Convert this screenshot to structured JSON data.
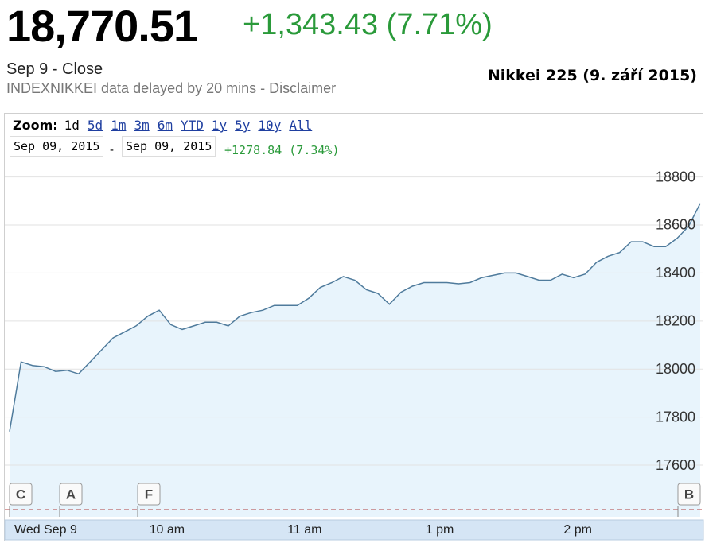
{
  "header": {
    "price": "18,770.51",
    "change": "+1,343.43 (7.71%)",
    "session": "Sep 9 - Close",
    "disclaimer": "INDEXNIKKEI data delayed by 20 mins - Disclaimer",
    "caption": "Nikkei 225 (9. září 2015)"
  },
  "zoom": {
    "label": "Zoom:",
    "options": [
      "1d",
      "5d",
      "1m",
      "3m",
      "6m",
      "YTD",
      "1y",
      "5y",
      "10y",
      "All"
    ],
    "from": "Sep 09, 2015",
    "separator": "-",
    "to": "Sep 09, 2015",
    "range_change": "+1278.84 (7.34%)"
  },
  "chart_data": {
    "type": "line",
    "categories": [
      "Wed Sep 9",
      null,
      null,
      null,
      null,
      null,
      null,
      null,
      null,
      null,
      null,
      null,
      "10 am",
      null,
      null,
      null,
      null,
      null,
      null,
      null,
      null,
      null,
      null,
      null,
      "11 am",
      null,
      null,
      null,
      null,
      null,
      null,
      null,
      null,
      null,
      null,
      null,
      "1 pm",
      null,
      null,
      null,
      null,
      null,
      null,
      null,
      null,
      null,
      null,
      null,
      "2 pm",
      null,
      null,
      null,
      null,
      null,
      null,
      null,
      null,
      null,
      null,
      null,
      null
    ],
    "values": [
      17740,
      18030,
      18015,
      18010,
      17990,
      17995,
      17980,
      18030,
      18080,
      18130,
      18155,
      18180,
      18220,
      18245,
      18185,
      18165,
      18180,
      18195,
      18195,
      18180,
      18220,
      18235,
      18245,
      18265,
      18265,
      18265,
      18295,
      18340,
      18360,
      18385,
      18370,
      18330,
      18315,
      18270,
      18320,
      18345,
      18360,
      18360,
      18360,
      18355,
      18360,
      18380,
      18390,
      18400,
      18400,
      18385,
      18370,
      18370,
      18395,
      18380,
      18395,
      18445,
      18470,
      18485,
      18530,
      18530,
      18510,
      18510,
      18545,
      18595,
      18690
    ],
    "color": "#4f7b9c",
    "fill_color": "#e8f4fc",
    "ylim": [
      17385,
      18835
    ],
    "yticks": [
      17600,
      17800,
      18000,
      18200,
      18400,
      18600,
      18800
    ],
    "grid": true,
    "annotations": [
      "C",
      "A",
      "F",
      "B"
    ]
  }
}
